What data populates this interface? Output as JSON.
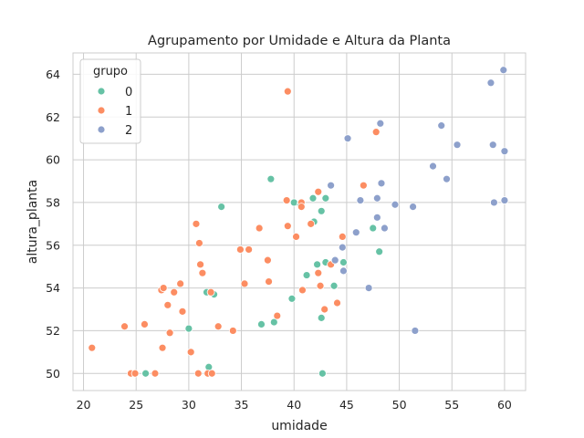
{
  "chart_data": {
    "type": "scatter",
    "title": "Agrupamento por Umidade e Altura da Planta",
    "xlabel": "umidade",
    "ylabel": "altura_planta",
    "xlim": [
      19,
      62
    ],
    "ylim": [
      49.2,
      65
    ],
    "xticks": [
      20,
      25,
      30,
      35,
      40,
      45,
      50,
      55,
      60
    ],
    "yticks": [
      50,
      52,
      54,
      56,
      58,
      60,
      62,
      64
    ],
    "grid": true,
    "legend": {
      "title": "grupo",
      "placement": "top-left"
    },
    "series": [
      {
        "name": "0",
        "color": "#66c2a5",
        "points": [
          [
            25.9,
            50.0
          ],
          [
            30.0,
            52.1
          ],
          [
            31.7,
            53.8
          ],
          [
            31.9,
            50.3
          ],
          [
            32.4,
            53.7
          ],
          [
            33.1,
            57.8
          ],
          [
            36.9,
            52.3
          ],
          [
            37.8,
            59.1
          ],
          [
            38.1,
            52.4
          ],
          [
            39.8,
            53.5
          ],
          [
            40.0,
            58.0
          ],
          [
            40.6,
            57.9
          ],
          [
            41.2,
            54.6
          ],
          [
            41.8,
            58.2
          ],
          [
            41.9,
            57.1
          ],
          [
            42.2,
            55.1
          ],
          [
            42.6,
            57.6
          ],
          [
            42.6,
            52.6
          ],
          [
            42.7,
            50.0
          ],
          [
            43.0,
            58.2
          ],
          [
            43.0,
            55.2
          ],
          [
            43.8,
            54.1
          ],
          [
            44.7,
            55.2
          ],
          [
            47.5,
            56.8
          ],
          [
            48.1,
            55.7
          ]
        ]
      },
      {
        "name": "1",
        "color": "#fc8d62",
        "points": [
          [
            20.8,
            51.2
          ],
          [
            23.9,
            52.2
          ],
          [
            24.5,
            50.0
          ],
          [
            24.9,
            50.0
          ],
          [
            25.8,
            52.3
          ],
          [
            26.8,
            50.0
          ],
          [
            27.4,
            53.9
          ],
          [
            27.5,
            51.2
          ],
          [
            27.6,
            54.0
          ],
          [
            28.0,
            53.2
          ],
          [
            28.2,
            51.9
          ],
          [
            28.6,
            53.8
          ],
          [
            29.2,
            54.2
          ],
          [
            29.4,
            52.9
          ],
          [
            30.2,
            51.0
          ],
          [
            30.7,
            57.0
          ],
          [
            30.9,
            50.0
          ],
          [
            31.0,
            56.1
          ],
          [
            31.1,
            55.1
          ],
          [
            31.3,
            54.7
          ],
          [
            31.8,
            50.0
          ],
          [
            32.1,
            53.8
          ],
          [
            32.2,
            50.0
          ],
          [
            32.8,
            52.2
          ],
          [
            34.2,
            52.0
          ],
          [
            34.9,
            55.8
          ],
          [
            35.3,
            54.2
          ],
          [
            35.7,
            55.8
          ],
          [
            36.7,
            56.8
          ],
          [
            37.5,
            55.3
          ],
          [
            37.6,
            54.3
          ],
          [
            38.4,
            52.7
          ],
          [
            39.3,
            58.1
          ],
          [
            39.4,
            56.9
          ],
          [
            39.4,
            63.2
          ],
          [
            40.2,
            56.4
          ],
          [
            40.7,
            58.0
          ],
          [
            40.7,
            57.8
          ],
          [
            40.8,
            53.9
          ],
          [
            41.6,
            57.0
          ],
          [
            42.3,
            58.5
          ],
          [
            42.3,
            54.7
          ],
          [
            42.5,
            54.1
          ],
          [
            42.9,
            53.0
          ],
          [
            43.5,
            55.1
          ],
          [
            44.1,
            53.3
          ],
          [
            44.6,
            56.4
          ],
          [
            46.6,
            58.8
          ],
          [
            47.8,
            61.3
          ]
        ]
      },
      {
        "name": "2",
        "color": "#8da0cb",
        "points": [
          [
            43.5,
            58.8
          ],
          [
            43.9,
            55.3
          ],
          [
            44.6,
            55.9
          ],
          [
            44.7,
            54.8
          ],
          [
            45.1,
            61.0
          ],
          [
            45.9,
            56.6
          ],
          [
            46.3,
            58.1
          ],
          [
            47.1,
            54.0
          ],
          [
            47.9,
            58.2
          ],
          [
            47.9,
            57.3
          ],
          [
            48.2,
            61.7
          ],
          [
            48.3,
            58.9
          ],
          [
            48.6,
            56.8
          ],
          [
            49.6,
            57.9
          ],
          [
            51.3,
            57.8
          ],
          [
            51.5,
            52.0
          ],
          [
            53.2,
            59.7
          ],
          [
            54.0,
            61.6
          ],
          [
            54.5,
            59.1
          ],
          [
            55.5,
            60.7
          ],
          [
            58.7,
            63.6
          ],
          [
            58.9,
            60.7
          ],
          [
            59.0,
            58.0
          ],
          [
            59.9,
            64.2
          ],
          [
            60.0,
            60.4
          ],
          [
            60.0,
            58.1
          ]
        ]
      }
    ]
  }
}
